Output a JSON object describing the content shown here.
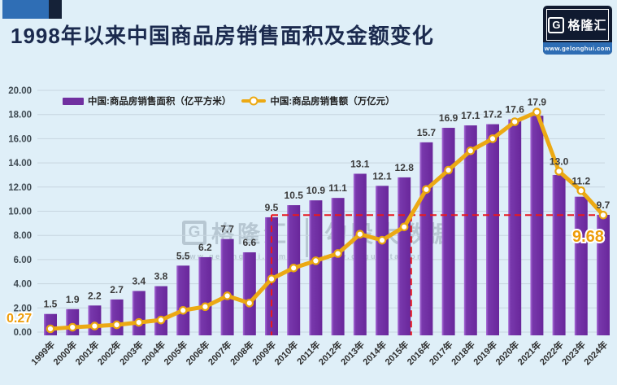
{
  "header": {
    "title": "1998年以来中国商品房销售面积及金额变化",
    "logo": {
      "symbol": "G",
      "name": "格隆汇",
      "url": "www.gelonghui.com"
    }
  },
  "watermark": {
    "left_symbol": "G",
    "left_name": "格隆汇",
    "left_url": "www.gelonghui.com",
    "right_name": "勾股大数据",
    "right_url": "www.gogudata.com"
  },
  "chart_data": {
    "type": "combo-bar-line",
    "categories": [
      "1999年",
      "2000年",
      "2001年",
      "2002年",
      "2003年",
      "2004年",
      "2005年",
      "2006年",
      "2007年",
      "2008年",
      "2009年",
      "2010年",
      "2011年",
      "2012年",
      "2013年",
      "2014年",
      "2015年",
      "2016年",
      "2017年",
      "2018年",
      "2019年",
      "2020年",
      "2021年",
      "2022年",
      "2023年",
      "2024年"
    ],
    "series": [
      {
        "name": "中国:商品房销售面积（亿平方米）",
        "type": "bar",
        "color": "#7030A0",
        "values": [
          1.5,
          1.9,
          2.2,
          2.7,
          3.4,
          3.8,
          5.5,
          6.2,
          7.7,
          6.6,
          9.5,
          10.5,
          10.9,
          11.1,
          13.1,
          12.1,
          12.8,
          15.7,
          16.9,
          17.1,
          17.2,
          17.6,
          17.9,
          13.0,
          11.2,
          9.7
        ]
      },
      {
        "name": "中国:商品房销售额（万亿元）",
        "type": "line",
        "color": "#ECA913",
        "marker": "white circle with gold ring",
        "values": [
          0.27,
          0.4,
          0.5,
          0.6,
          0.8,
          1.0,
          1.8,
          2.1,
          3.0,
          2.4,
          4.4,
          5.3,
          5.9,
          6.5,
          8.1,
          7.6,
          8.7,
          11.8,
          13.4,
          15.0,
          16.0,
          17.4,
          18.2,
          13.3,
          11.7,
          9.68
        ],
        "values_note": "only first and last points carry data labels on the chart; intermediate values estimated from gridlines",
        "first_point_label": "0.27",
        "last_point_label": "9.68"
      }
    ],
    "ylim": [
      0,
      20
    ],
    "y_tick_step": 2,
    "y_ticks": [
      "0.00",
      "2.00",
      "4.00",
      "6.00",
      "8.00",
      "10.00",
      "12.00",
      "14.00",
      "16.00",
      "18.00",
      "20.00"
    ],
    "grid": true,
    "legend_position": "top-left inside plot",
    "annotations": {
      "dashed_color": "#E8191F",
      "horizontal_dashed_level": 9.68,
      "horizontal_dashed_span": [
        "2009年",
        "2024年"
      ],
      "vertical_dashed_1_at": "2009年",
      "vertical_dashed_2_at": "where line crosses 9.68 between 2015年 and 2016年"
    }
  }
}
